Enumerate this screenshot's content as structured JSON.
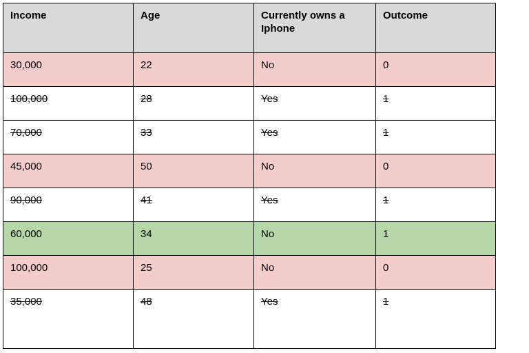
{
  "table": {
    "columns": [
      "Income",
      "Age",
      "Currently owns a Iphone",
      "Outcome"
    ],
    "rows": [
      {
        "cells": [
          "30,000",
          "22",
          "No",
          "0"
        ],
        "bg": "pink",
        "strike": false
      },
      {
        "cells": [
          "100,000",
          "28",
          "Yes",
          "1"
        ],
        "bg": "white",
        "strike": true
      },
      {
        "cells": [
          "70,000",
          "33",
          "Yes",
          "1"
        ],
        "bg": "white",
        "strike": true
      },
      {
        "cells": [
          "45,000",
          "50",
          "No",
          "0"
        ],
        "bg": "pink",
        "strike": false
      },
      {
        "cells": [
          "90,000",
          "41",
          "Yes",
          "1"
        ],
        "bg": "white",
        "strike": true
      },
      {
        "cells": [
          "60,000",
          "34",
          "No",
          "1"
        ],
        "bg": "green",
        "strike": false
      },
      {
        "cells": [
          "100,000",
          "25",
          "No",
          "0"
        ],
        "bg": "pink",
        "strike": false
      },
      {
        "cells": [
          "35,000",
          "48",
          "Yes",
          "1"
        ],
        "bg": "white",
        "strike": true
      }
    ],
    "colors": {
      "header": "#d9d9d9",
      "pink": "#f4cccc",
      "green": "#b6d7a8",
      "white": "#ffffff",
      "border": "#000000"
    }
  }
}
